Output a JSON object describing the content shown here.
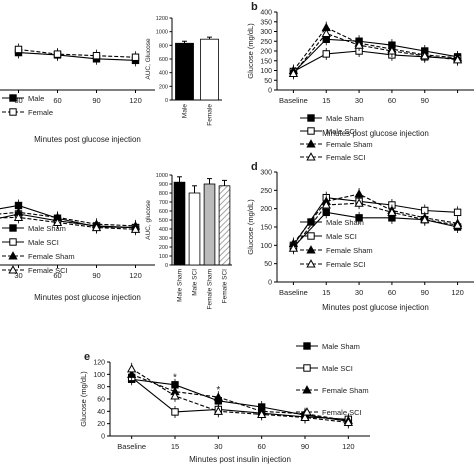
{
  "chart_data": [
    {
      "panel": "a",
      "type": "line",
      "panel_label": "",
      "xlabel": "Minutes post glucose injection",
      "ylabel": "",
      "categories": [
        "",
        "30",
        "60",
        "90",
        "120"
      ],
      "series": [
        {
          "name": "Male",
          "style": "solid",
          "marker": "filled-square",
          "values": [
            null,
            48,
            45,
            40,
            38
          ]
        },
        {
          "name": "Female",
          "style": "dashed",
          "marker": "open-square",
          "values": [
            null,
            52,
            46,
            44,
            42
          ]
        }
      ],
      "legend": [
        "Male",
        "Female"
      ],
      "legend_position": "bottom-left"
    },
    {
      "panel": "a-auc",
      "type": "bar",
      "ylabel": "AUC, Glucose",
      "categories": [
        "Male",
        "Female"
      ],
      "values": [
        830,
        890
      ],
      "errors": [
        30,
        30
      ],
      "fills": [
        "#000000",
        "#ffffff"
      ],
      "ylim": [
        0,
        1200
      ],
      "yticks": [
        "0",
        "200",
        "400",
        "600",
        "800",
        "1000",
        "1200"
      ]
    },
    {
      "panel": "b",
      "type": "line",
      "panel_label": "b",
      "xlabel": "Minutes post glucose injection",
      "ylabel": "Glucose (mg/dL)",
      "ylim": [
        0,
        400
      ],
      "yticks": [
        "0",
        "50",
        "100",
        "150",
        "200",
        "250",
        "300",
        "350",
        "400"
      ],
      "categories": [
        "Baseline",
        "15",
        "30",
        "60",
        "90",
        ""
      ],
      "series": [
        {
          "name": "Male Sham",
          "style": "solid",
          "marker": "filled-square",
          "values": [
            90,
            260,
            250,
            230,
            200,
            170
          ]
        },
        {
          "name": "Male SCI",
          "style": "solid",
          "marker": "open-square",
          "values": [
            95,
            185,
            200,
            180,
            170,
            160
          ]
        },
        {
          "name": "Female Sham",
          "style": "dashed",
          "marker": "filled-triangle",
          "values": [
            100,
            320,
            240,
            210,
            180,
            165
          ]
        },
        {
          "name": "Female SCI",
          "style": "dashed",
          "marker": "open-triangle",
          "values": [
            85,
            290,
            230,
            200,
            175,
            155
          ]
        }
      ],
      "legend_position": "bottom-left"
    },
    {
      "panel": "c",
      "type": "line",
      "panel_label": "",
      "xlabel": "Minutes post glucose injection",
      "ylabel": "",
      "categories": [
        "",
        "30",
        "60",
        "90",
        "120"
      ],
      "series": [
        {
          "name": "Male Sham",
          "style": "solid",
          "marker": "filled-square",
          "values": [
            62,
            70,
            55,
            45,
            44
          ]
        },
        {
          "name": "Male SCI",
          "style": "solid",
          "marker": "open-square",
          "values": [
            50,
            60,
            52,
            46,
            44
          ]
        },
        {
          "name": "Female Sham",
          "style": "dashed",
          "marker": "filled-triangle",
          "values": [
            58,
            62,
            56,
            48,
            46
          ]
        },
        {
          "name": "Female SCI",
          "style": "dashed",
          "marker": "open-triangle",
          "values": [
            55,
            56,
            50,
            44,
            42
          ]
        }
      ],
      "legend_position": "bottom-left"
    },
    {
      "panel": "c-auc",
      "type": "bar",
      "ylabel": "AUC, glucose",
      "categories": [
        "Male Sham",
        "Male SCI",
        "Female Sham",
        "Female SCI"
      ],
      "values": [
        920,
        800,
        900,
        880
      ],
      "errors": [
        60,
        80,
        60,
        60
      ],
      "fills": [
        "#000000",
        "#ffffff",
        "#bbbbbb",
        "hatch"
      ],
      "ylim": [
        0,
        1000
      ],
      "yticks": [
        "0",
        "100",
        "200",
        "300",
        "400",
        "500",
        "600",
        "700",
        "800",
        "900",
        "1000"
      ]
    },
    {
      "panel": "d",
      "type": "line",
      "panel_label": "d",
      "xlabel": "Minutes post glucose injection",
      "ylabel": "Glucose (mg/dL)",
      "ylim": [
        0,
        300
      ],
      "yticks": [
        "0",
        "50",
        "100",
        "150",
        "200",
        "250",
        "300"
      ],
      "categories": [
        "Baseline",
        "15",
        "30",
        "60",
        "90",
        "120"
      ],
      "series": [
        {
          "name": "Male Sham",
          "style": "solid",
          "marker": "filled-square",
          "values": [
            95,
            190,
            175,
            175,
            170,
            150
          ]
        },
        {
          "name": "Male SCI",
          "style": "solid",
          "marker": "open-square",
          "values": [
            100,
            230,
            220,
            210,
            195,
            190
          ]
        },
        {
          "name": "Female Sham",
          "style": "dashed",
          "marker": "filled-triangle",
          "values": [
            105,
            220,
            240,
            195,
            175,
            160
          ]
        },
        {
          "name": "Female SCI",
          "style": "dashed",
          "marker": "open-triangle",
          "values": [
            92,
            210,
            215,
            190,
            170,
            155
          ]
        }
      ],
      "legend_position": "bottom-left"
    },
    {
      "panel": "e",
      "type": "line",
      "panel_label": "e",
      "xlabel": "Minutes post insulin injection",
      "ylabel": "Glucose (mg/dL)",
      "ylim": [
        0,
        120
      ],
      "yticks": [
        "0",
        "20",
        "40",
        "60",
        "80",
        "100",
        "120"
      ],
      "categories": [
        "Baseline",
        "15",
        "30",
        "60",
        "90",
        "120"
      ],
      "series": [
        {
          "name": "Male Sham",
          "style": "solid",
          "marker": "filled-square",
          "values": [
            92,
            83,
            57,
            47,
            34,
            24
          ]
        },
        {
          "name": "Male SCI",
          "style": "solid",
          "marker": "open-square",
          "values": [
            95,
            39,
            43,
            37,
            31,
            27
          ]
        },
        {
          "name": "Female Sham",
          "style": "dashed",
          "marker": "filled-triangle",
          "values": [
            100,
            72,
            63,
            40,
            36,
            25
          ]
        },
        {
          "name": "Female SCI",
          "style": "dashed",
          "marker": "open-triangle",
          "values": [
            109,
            65,
            40,
            35,
            30,
            22
          ]
        }
      ],
      "annotations": [
        {
          "text": "*",
          "category": "15",
          "y": 90
        },
        {
          "text": "*",
          "category": "30",
          "y": 70
        }
      ],
      "legend_position": "right"
    }
  ]
}
